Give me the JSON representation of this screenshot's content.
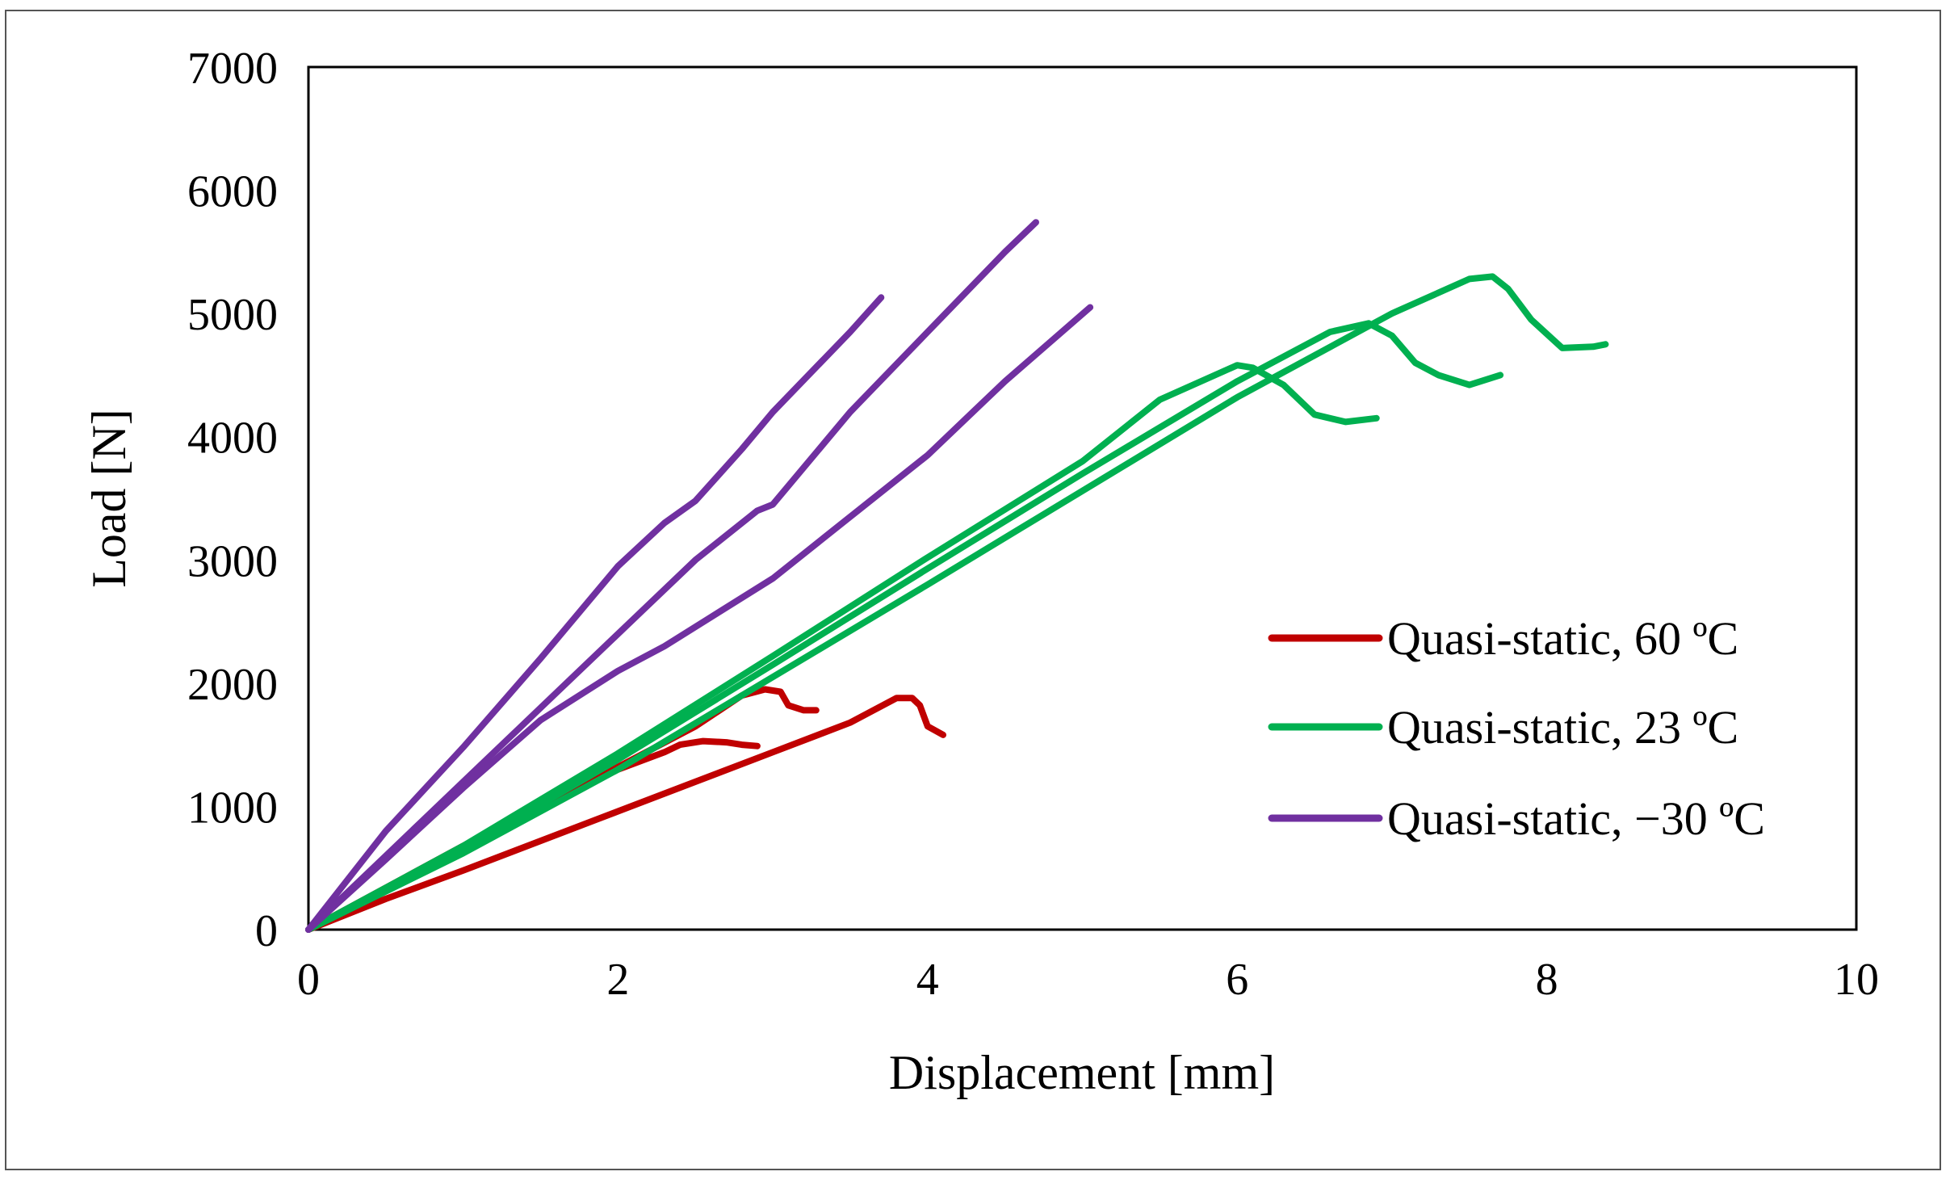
{
  "chart_data": {
    "type": "line",
    "title": "",
    "xlabel": "Displacement  [mm]",
    "ylabel": "Load [N]",
    "xlim": [
      0,
      10
    ],
    "ylim": [
      0,
      7000
    ],
    "xticks": [
      0,
      2,
      4,
      6,
      8,
      10
    ],
    "yticks": [
      0,
      1000,
      2000,
      3000,
      4000,
      5000,
      6000,
      7000
    ],
    "xtick_labels": [
      "0",
      "2",
      "4",
      "6",
      "8",
      "10"
    ],
    "ytick_labels": [
      "0",
      "1000",
      "2000",
      "3000",
      "4000",
      "5000",
      "6000",
      "7000"
    ],
    "grid": false,
    "legend_position": "right",
    "series": [
      {
        "name": "Quasi-static, 60 ºC",
        "color": "#c00000",
        "curves": [
          [
            [
              0,
              0
            ],
            [
              0.5,
              250
            ],
            [
              1,
              480
            ],
            [
              1.5,
              720
            ],
            [
              2,
              960
            ],
            [
              2.5,
              1200
            ],
            [
              3,
              1440
            ],
            [
              3.5,
              1680
            ],
            [
              3.8,
              1880
            ],
            [
              3.9,
              1880
            ],
            [
              3.95,
              1820
            ],
            [
              4.0,
              1650
            ],
            [
              4.1,
              1580
            ]
          ],
          [
            [
              0,
              0
            ],
            [
              0.5,
              330
            ],
            [
              1,
              650
            ],
            [
              1.5,
              980
            ],
            [
              2,
              1300
            ],
            [
              2.3,
              1440
            ],
            [
              2.4,
              1500
            ],
            [
              2.55,
              1530
            ],
            [
              2.7,
              1520
            ],
            [
              2.8,
              1500
            ],
            [
              2.9,
              1490
            ]
          ],
          [
            [
              0,
              0
            ],
            [
              0.5,
              340
            ],
            [
              1,
              680
            ],
            [
              1.5,
              1000
            ],
            [
              2,
              1320
            ],
            [
              2.5,
              1650
            ],
            [
              2.8,
              1900
            ],
            [
              2.95,
              1950
            ],
            [
              3.05,
              1930
            ],
            [
              3.1,
              1820
            ],
            [
              3.2,
              1780
            ],
            [
              3.28,
              1780
            ]
          ]
        ]
      },
      {
        "name": "Quasi-static, 23 ºC",
        "color": "#00b050",
        "curves": [
          [
            [
              0,
              0
            ],
            [
              1,
              680
            ],
            [
              2,
              1430
            ],
            [
              3,
              2220
            ],
            [
              4,
              3020
            ],
            [
              5,
              3800
            ],
            [
              5.5,
              4300
            ],
            [
              6.0,
              4580
            ],
            [
              6.1,
              4560
            ],
            [
              6.3,
              4420
            ],
            [
              6.5,
              4180
            ],
            [
              6.7,
              4120
            ],
            [
              6.9,
              4150
            ]
          ],
          [
            [
              0,
              0
            ],
            [
              1,
              650
            ],
            [
              2,
              1380
            ],
            [
              3,
              2150
            ],
            [
              4,
              2930
            ],
            [
              5,
              3700
            ],
            [
              6,
              4450
            ],
            [
              6.6,
              4850
            ],
            [
              6.85,
              4920
            ],
            [
              7.0,
              4820
            ],
            [
              7.15,
              4600
            ],
            [
              7.3,
              4500
            ],
            [
              7.5,
              4420
            ],
            [
              7.7,
              4500
            ]
          ],
          [
            [
              0,
              0
            ],
            [
              1,
              620
            ],
            [
              2,
              1300
            ],
            [
              3,
              2050
            ],
            [
              4,
              2800
            ],
            [
              5,
              3560
            ],
            [
              6,
              4320
            ],
            [
              7,
              5000
            ],
            [
              7.5,
              5280
            ],
            [
              7.65,
              5300
            ],
            [
              7.75,
              5200
            ],
            [
              7.9,
              4950
            ],
            [
              8.1,
              4720
            ],
            [
              8.3,
              4730
            ],
            [
              8.38,
              4750
            ]
          ]
        ]
      },
      {
        "name": "Quasi-static, −30 ºC",
        "color": "#7030a0",
        "curves": [
          [
            [
              0,
              0
            ],
            [
              0.5,
              800
            ],
            [
              1,
              1480
            ],
            [
              1.5,
              2200
            ],
            [
              2,
              2950
            ],
            [
              2.3,
              3300
            ],
            [
              2.5,
              3480
            ],
            [
              2.8,
              3900
            ],
            [
              3,
              4200
            ],
            [
              3.5,
              4850
            ],
            [
              3.7,
              5130
            ]
          ],
          [
            [
              0,
              0
            ],
            [
              0.5,
              600
            ],
            [
              1,
              1200
            ],
            [
              1.5,
              1800
            ],
            [
              2,
              2400
            ],
            [
              2.5,
              3000
            ],
            [
              2.9,
              3400
            ],
            [
              3.0,
              3450
            ],
            [
              3.5,
              4200
            ],
            [
              4,
              4850
            ],
            [
              4.5,
              5500
            ],
            [
              4.7,
              5740
            ]
          ],
          [
            [
              0,
              0
            ],
            [
              0.5,
              570
            ],
            [
              1,
              1150
            ],
            [
              1.5,
              1700
            ],
            [
              2,
              2100
            ],
            [
              2.3,
              2300
            ],
            [
              3,
              2850
            ],
            [
              3.5,
              3350
            ],
            [
              4,
              3850
            ],
            [
              4.5,
              4450
            ],
            [
              5.05,
              5050
            ]
          ]
        ]
      }
    ]
  }
}
